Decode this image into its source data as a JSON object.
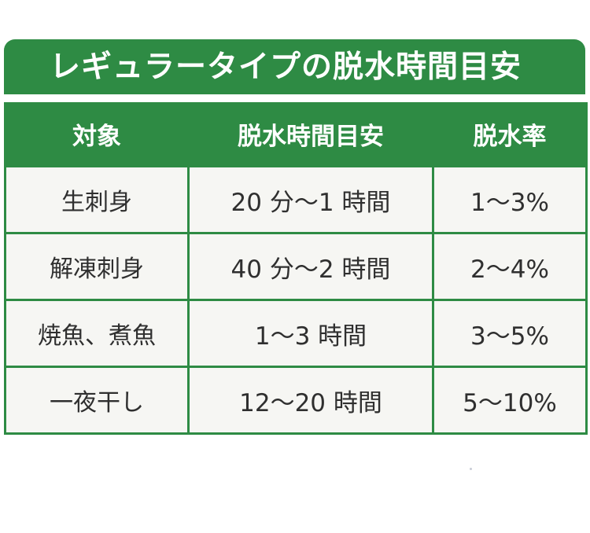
{
  "title": "レギュラータイプの脱水時間目安",
  "table": {
    "headers": [
      "対象",
      "脱水時間目安",
      "脱水率"
    ],
    "rows": [
      [
        "生刺身",
        "20 分～1 時間",
        "1～3%"
      ],
      [
        "解凍刺身",
        "40 分～2 時間",
        "2～4%"
      ],
      [
        "焼魚、煮魚",
        "1～3 時間",
        "3～5%"
      ],
      [
        "一夜干し",
        "12～20 時間",
        "5～10%"
      ]
    ]
  },
  "colors": {
    "accent_green": "#2e8b44",
    "cell_background": "#f6f6f3",
    "text": "#2f2f2f"
  }
}
